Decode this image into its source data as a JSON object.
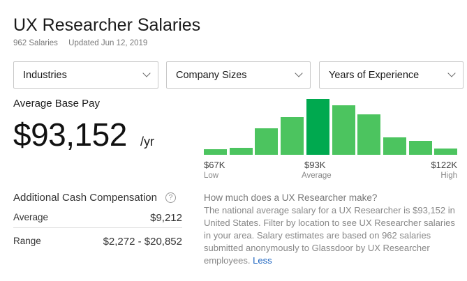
{
  "header": {
    "title": "UX Researcher Salaries",
    "salary_count": "962 Salaries",
    "updated": "Updated Jun 12, 2019"
  },
  "filters": [
    {
      "label": "Industries"
    },
    {
      "label": "Company Sizes"
    },
    {
      "label": "Years of Experience"
    }
  ],
  "base_pay": {
    "label": "Average Base Pay",
    "amount": "$93,152",
    "unit": "/yr"
  },
  "chart_data": {
    "type": "bar",
    "title": "",
    "relative_heights_percent": [
      10,
      13,
      48,
      68,
      100,
      89,
      72,
      31,
      25,
      11
    ],
    "highlight_index": 4,
    "colors": {
      "bar": "#4cc45f",
      "highlight": "#00a94f"
    },
    "tick_labels": [
      {
        "value": "$67K",
        "caption": "Low"
      },
      {
        "value": "$93K",
        "caption": "Average"
      },
      {
        "value": "$122K",
        "caption": "High"
      }
    ]
  },
  "additional_cash": {
    "label": "Additional Cash Compensation",
    "help_icon": "?",
    "average_label": "Average",
    "average_value": "$9,212",
    "range_label": "Range",
    "range_value": "$2,272 - $20,852"
  },
  "description": {
    "question": "How much does a UX Researcher make?",
    "body": "The national average salary for a UX Researcher is $93,152 in United States. Filter by location to see UX Researcher salaries in your area. Salary estimates are based on 962 salaries submitted anonymously to Glassdoor by UX Researcher employees.",
    "less_link": "Less"
  }
}
